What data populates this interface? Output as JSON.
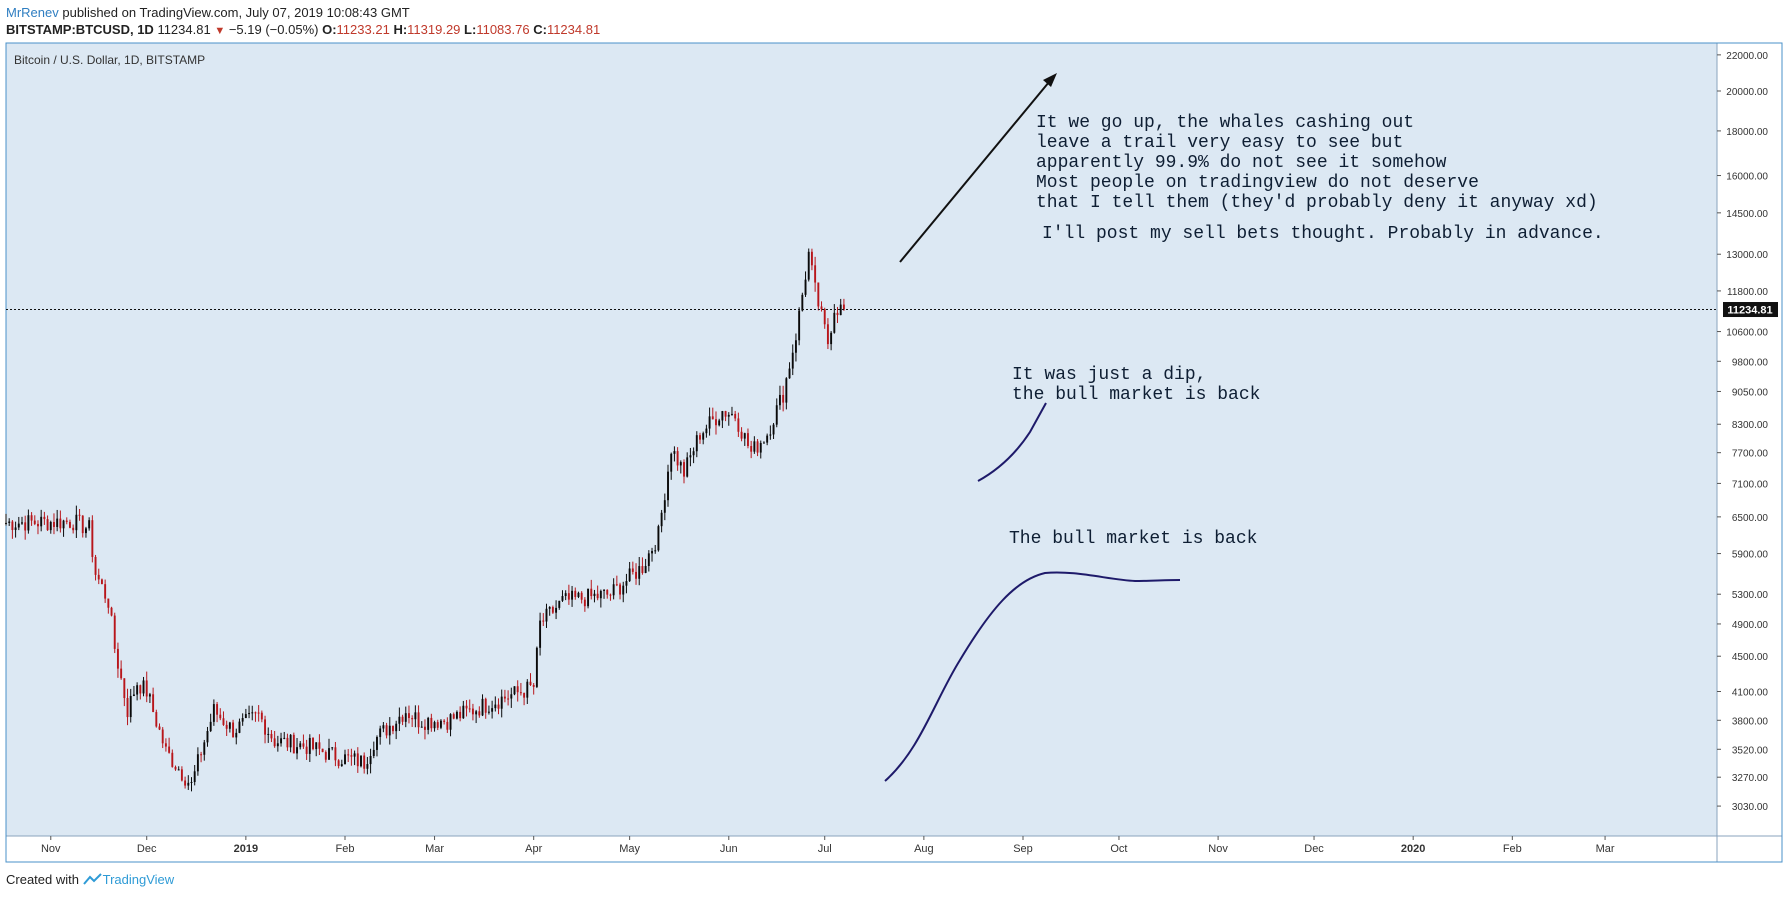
{
  "header": {
    "author": "MrRenev",
    "published": " published on TradingView.com, July 07, 2019 10:08:43 GMT",
    "symbol": "BITSTAMP:BTCUSD, 1D",
    "price": "11234.81",
    "change_arrow": "▼",
    "change": "−5.19 (−0.05%)",
    "o_label": "O:",
    "o_value": "11233.21",
    "h_label": "H:",
    "h_value": "11319.29",
    "l_label": "L:",
    "l_value": "11083.76",
    "c_label": "C:",
    "c_value": "11234.81"
  },
  "footer": {
    "created_with": "Created with",
    "brand": "TradingView",
    "logo_icon": "tradingview-logo-icon"
  },
  "colors": {
    "background": "#dce8f3",
    "up": "#0a0a0a",
    "down": "#b8161b",
    "annotation": "#1e1a6a",
    "text_annotation": "#0e1e33"
  },
  "chart_data": {
    "type": "candlestick",
    "title": "Bitcoin / U.S. Dollar, 1D, BITSTAMP",
    "last_price": 11234.81,
    "last_price_label": "11234.81",
    "y_scale": "log",
    "ylim": [
      2800,
      22700
    ],
    "yticks": [
      22000,
      20000,
      18000,
      16000,
      14500,
      13000,
      11800,
      10600,
      9800,
      9050,
      8300,
      7700,
      7100,
      6500,
      5900,
      5300,
      4900,
      4500,
      4100,
      3800,
      3520,
      3270,
      3030
    ],
    "ytick_labels": [
      "22000.00",
      "20000.00",
      "18000.00",
      "16000.00",
      "14500.00",
      "13000.00",
      "11800.00",
      "10600.00",
      "9800.00",
      "9050.00",
      "8300.00",
      "7700.00",
      "7100.00",
      "6500.00",
      "5900.00",
      "5300.00",
      "4900.00",
      "4500.00",
      "4100.00",
      "3800.00",
      "3520.00",
      "3270.00",
      "3030.00"
    ],
    "x_range": [
      "2018-10-18",
      "2020-04-05"
    ],
    "xticks": [
      {
        "date": "2018-11-01",
        "label": "Nov"
      },
      {
        "date": "2018-12-01",
        "label": "Dec"
      },
      {
        "date": "2019-01-01",
        "label": "2019"
      },
      {
        "date": "2019-02-01",
        "label": "Feb"
      },
      {
        "date": "2019-03-01",
        "label": "Mar"
      },
      {
        "date": "2019-04-01",
        "label": "Apr"
      },
      {
        "date": "2019-05-01",
        "label": "May"
      },
      {
        "date": "2019-06-01",
        "label": "Jun"
      },
      {
        "date": "2019-07-01",
        "label": "Jul"
      },
      {
        "date": "2019-08-01",
        "label": "Aug"
      },
      {
        "date": "2019-09-01",
        "label": "Sep"
      },
      {
        "date": "2019-10-01",
        "label": "Oct"
      },
      {
        "date": "2019-11-01",
        "label": "Nov"
      },
      {
        "date": "2019-12-01",
        "label": "Dec"
      },
      {
        "date": "2020-01-01",
        "label": "2020"
      },
      {
        "date": "2020-02-01",
        "label": "Feb"
      },
      {
        "date": "2020-03-01",
        "label": "Mar"
      }
    ],
    "price_path": [
      [
        "2018-10-18",
        6400
      ],
      [
        "2018-11-08",
        6420
      ],
      [
        "2018-11-13",
        6300
      ],
      [
        "2018-11-15",
        5600
      ],
      [
        "2018-11-19",
        5200
      ],
      [
        "2018-11-21",
        4600
      ],
      [
        "2018-11-25",
        3900
      ],
      [
        "2018-11-28",
        4200
      ],
      [
        "2018-12-01",
        4100
      ],
      [
        "2018-12-07",
        3500
      ],
      [
        "2018-12-15",
        3200
      ],
      [
        "2018-12-18",
        3500
      ],
      [
        "2018-12-22",
        3900
      ],
      [
        "2018-12-28",
        3700
      ],
      [
        "2019-01-05",
        3850
      ],
      [
        "2019-01-10",
        3600
      ],
      [
        "2019-01-20",
        3550
      ],
      [
        "2019-01-30",
        3450
      ],
      [
        "2019-02-07",
        3400
      ],
      [
        "2019-02-10",
        3600
      ],
      [
        "2019-02-20",
        3900
      ],
      [
        "2019-02-24",
        3800
      ],
      [
        "2019-03-05",
        3800
      ],
      [
        "2019-03-20",
        4000
      ],
      [
        "2019-04-01",
        4150
      ],
      [
        "2019-04-03",
        4900
      ],
      [
        "2019-04-10",
        5200
      ],
      [
        "2019-04-25",
        5300
      ],
      [
        "2019-05-05",
        5700
      ],
      [
        "2019-05-10",
        6200
      ],
      [
        "2019-05-14",
        7800
      ],
      [
        "2019-05-18",
        7300
      ],
      [
        "2019-05-23",
        8100
      ],
      [
        "2019-05-30",
        8600
      ],
      [
        "2019-06-03",
        8500
      ],
      [
        "2019-06-08",
        7700
      ],
      [
        "2019-06-13",
        8100
      ],
      [
        "2019-06-18",
        9000
      ],
      [
        "2019-06-22",
        10500
      ],
      [
        "2019-06-26",
        13000
      ],
      [
        "2019-06-28",
        11800
      ],
      [
        "2019-06-30",
        11000
      ],
      [
        "2019-07-02",
        10300
      ],
      [
        "2019-07-04",
        11300
      ],
      [
        "2019-07-07",
        11234.81
      ]
    ],
    "annotations": [
      {
        "label": "It we go up, the whales cashing out"
      },
      {
        "label": "leave a trail very easy to see but"
      },
      {
        "label": "apparently 99.9% do not see it somehow"
      },
      {
        "label": "Most people on tradingview do not deserve"
      },
      {
        "label": "that I tell them (they'd probably deny it anyway xd)"
      },
      {
        "label": "I'll post my sell bets thought. Probably in advance."
      },
      {
        "label": "It was just a dip,"
      },
      {
        "label": "the bull market is back"
      },
      {
        "label": "The bull market is back"
      }
    ]
  }
}
